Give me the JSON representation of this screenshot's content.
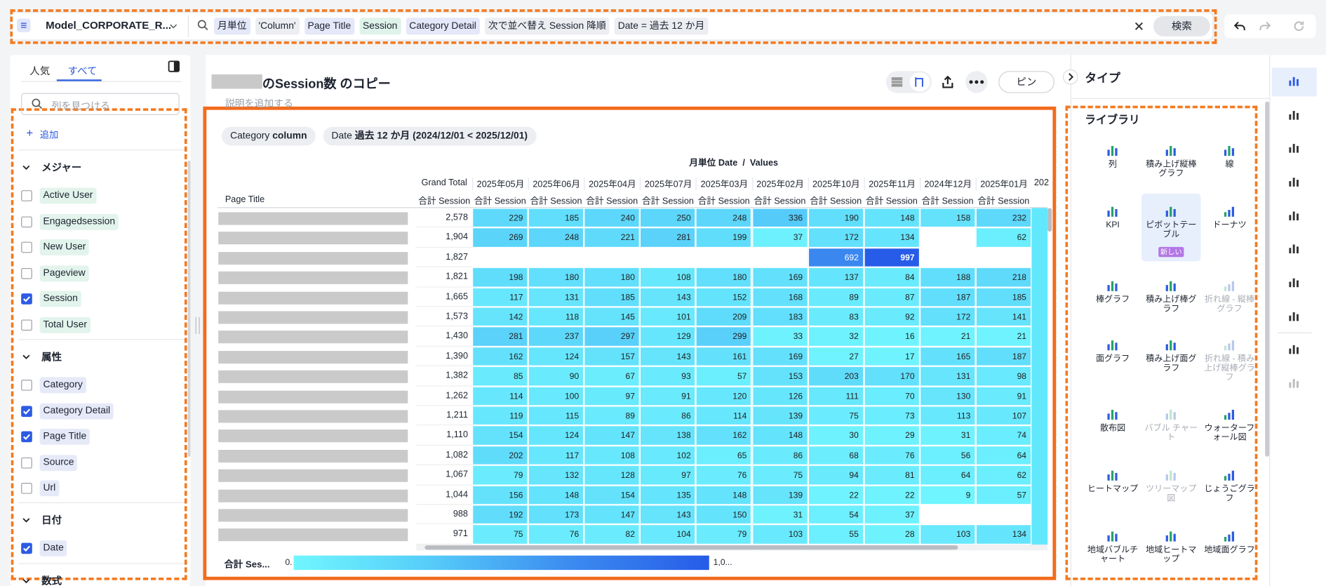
{
  "top_bar": {
    "model": "Model_CORPORATE_R...",
    "search_tokens": [
      "月単位",
      "'Column'",
      "Page Title",
      "Session",
      "Category Detail",
      "次で並べ替え Session 降順",
      "Date = 過去 12 か月"
    ],
    "search_button": "検索"
  },
  "left_panel": {
    "tabs": [
      "人気",
      "すべて"
    ],
    "search_placeholder": "列を見つける",
    "add_button": "追加",
    "sections": [
      {
        "title": "メジャー",
        "items": [
          {
            "label": "Active User",
            "checked": false
          },
          {
            "label": "Engagedsession",
            "checked": false
          },
          {
            "label": "New User",
            "checked": false
          },
          {
            "label": "Pageview",
            "checked": false
          },
          {
            "label": "Session",
            "checked": true
          },
          {
            "label": "Total User",
            "checked": false
          }
        ]
      },
      {
        "title": "属性",
        "items": [
          {
            "label": "Category",
            "checked": false
          },
          {
            "label": "Category Detail",
            "checked": true
          },
          {
            "label": "Page Title",
            "checked": true
          },
          {
            "label": "Source",
            "checked": false
          },
          {
            "label": "Url",
            "checked": false
          }
        ]
      },
      {
        "title": "日付",
        "items": [
          {
            "label": "Date",
            "checked": true
          }
        ]
      },
      {
        "title": "数式"
      }
    ]
  },
  "main": {
    "title": "のSession数 のコピー",
    "description_placeholder": "説明を追加する",
    "pin_button": "ピン",
    "filters": [
      {
        "name": "Category",
        "value": "column"
      },
      {
        "name": "Date",
        "value": "過去 12 か月 (2024/12/01 < 2025/12/01)"
      }
    ],
    "column_header": "月単位 Date  /  Values",
    "table": {
      "row_header": "Page Title",
      "grand_total": "Grand Total",
      "measure": "合計 Session",
      "columns": [
        "2025年05月",
        "2025年06月",
        "2025年04月",
        "2025年07月",
        "2025年03月",
        "2025年02月",
        "2025年10月",
        "2025年11月",
        "2024年12月",
        "2025年01月"
      ],
      "partial_column": "202",
      "rows": [
        {
          "total": "2,578",
          "cells": [
            229,
            185,
            240,
            250,
            248,
            336,
            190,
            148,
            158,
            232
          ]
        },
        {
          "total": "1,904",
          "cells": [
            269,
            248,
            221,
            281,
            199,
            37,
            172,
            134,
            null,
            62
          ]
        },
        {
          "total": "1,827",
          "cells": [
            null,
            null,
            null,
            null,
            null,
            null,
            692,
            997,
            null,
            null
          ]
        },
        {
          "total": "1,821",
          "cells": [
            198,
            180,
            180,
            108,
            180,
            169,
            137,
            84,
            188,
            218
          ]
        },
        {
          "total": "1,665",
          "cells": [
            117,
            131,
            185,
            143,
            152,
            168,
            89,
            87,
            187,
            185
          ]
        },
        {
          "total": "1,573",
          "cells": [
            142,
            118,
            145,
            101,
            209,
            183,
            83,
            92,
            172,
            141
          ]
        },
        {
          "total": "1,430",
          "cells": [
            281,
            237,
            297,
            129,
            299,
            33,
            32,
            16,
            21,
            21
          ]
        },
        {
          "total": "1,390",
          "cells": [
            162,
            124,
            157,
            143,
            161,
            169,
            27,
            17,
            165,
            187
          ]
        },
        {
          "total": "1,382",
          "cells": [
            85,
            90,
            67,
            93,
            57,
            153,
            203,
            170,
            131,
            98
          ]
        },
        {
          "total": "1,262",
          "cells": [
            114,
            100,
            97,
            91,
            120,
            126,
            111,
            70,
            130,
            91
          ]
        },
        {
          "total": "1,211",
          "cells": [
            119,
            115,
            89,
            86,
            114,
            139,
            75,
            73,
            113,
            107
          ]
        },
        {
          "total": "1,110",
          "cells": [
            154,
            124,
            147,
            138,
            162,
            148,
            30,
            29,
            31,
            74
          ]
        },
        {
          "total": "1,082",
          "cells": [
            202,
            117,
            108,
            102,
            65,
            86,
            68,
            76,
            56,
            64
          ]
        },
        {
          "total": "1,067",
          "cells": [
            79,
            132,
            128,
            97,
            76,
            75,
            94,
            81,
            64,
            62
          ]
        },
        {
          "total": "1,044",
          "cells": [
            156,
            148,
            154,
            135,
            148,
            139,
            22,
            22,
            9,
            57
          ]
        },
        {
          "total": "988",
          "cells": [
            192,
            173,
            147,
            143,
            150,
            31,
            54,
            37,
            null,
            null
          ]
        },
        {
          "total": "971",
          "cells": [
            75,
            76,
            82,
            104,
            79,
            103,
            55,
            28,
            103,
            134
          ]
        }
      ]
    },
    "legend": {
      "label": "合計 Ses...",
      "min": "0.",
      "max": "1,0..."
    }
  },
  "type_panel": {
    "heading": "タイプ",
    "library": "ライブラリ",
    "items": [
      {
        "label": "列"
      },
      {
        "label": "積み上げ縦棒グラフ"
      },
      {
        "label": "線"
      },
      {
        "label": "KPI"
      },
      {
        "label": "ピボットテーブル",
        "selected": true,
        "badge": "新しい"
      },
      {
        "label": "ドーナツ"
      },
      {
        "label": "棒グラフ"
      },
      {
        "label": "積み上げ棒グラフ"
      },
      {
        "label": "折れ線 - 縦棒グラフ",
        "disabled": true
      },
      {
        "label": "面グラフ"
      },
      {
        "label": "積み上げ面グラフ"
      },
      {
        "label": "折れ線 - 積み上げ縦棒グラフ",
        "disabled": true
      },
      {
        "label": "散布図"
      },
      {
        "label": "バブル チャート",
        "disabled": true
      },
      {
        "label": "ウォーターフォール図"
      },
      {
        "label": "ヒートマップ"
      },
      {
        "label": "ツリーマップ図",
        "disabled": true
      },
      {
        "label": "じょうごグラフ"
      },
      {
        "label": "地域バブルチャート"
      },
      {
        "label": "地域ヒートマップ"
      },
      {
        "label": "地域面グラフ"
      }
    ]
  }
}
